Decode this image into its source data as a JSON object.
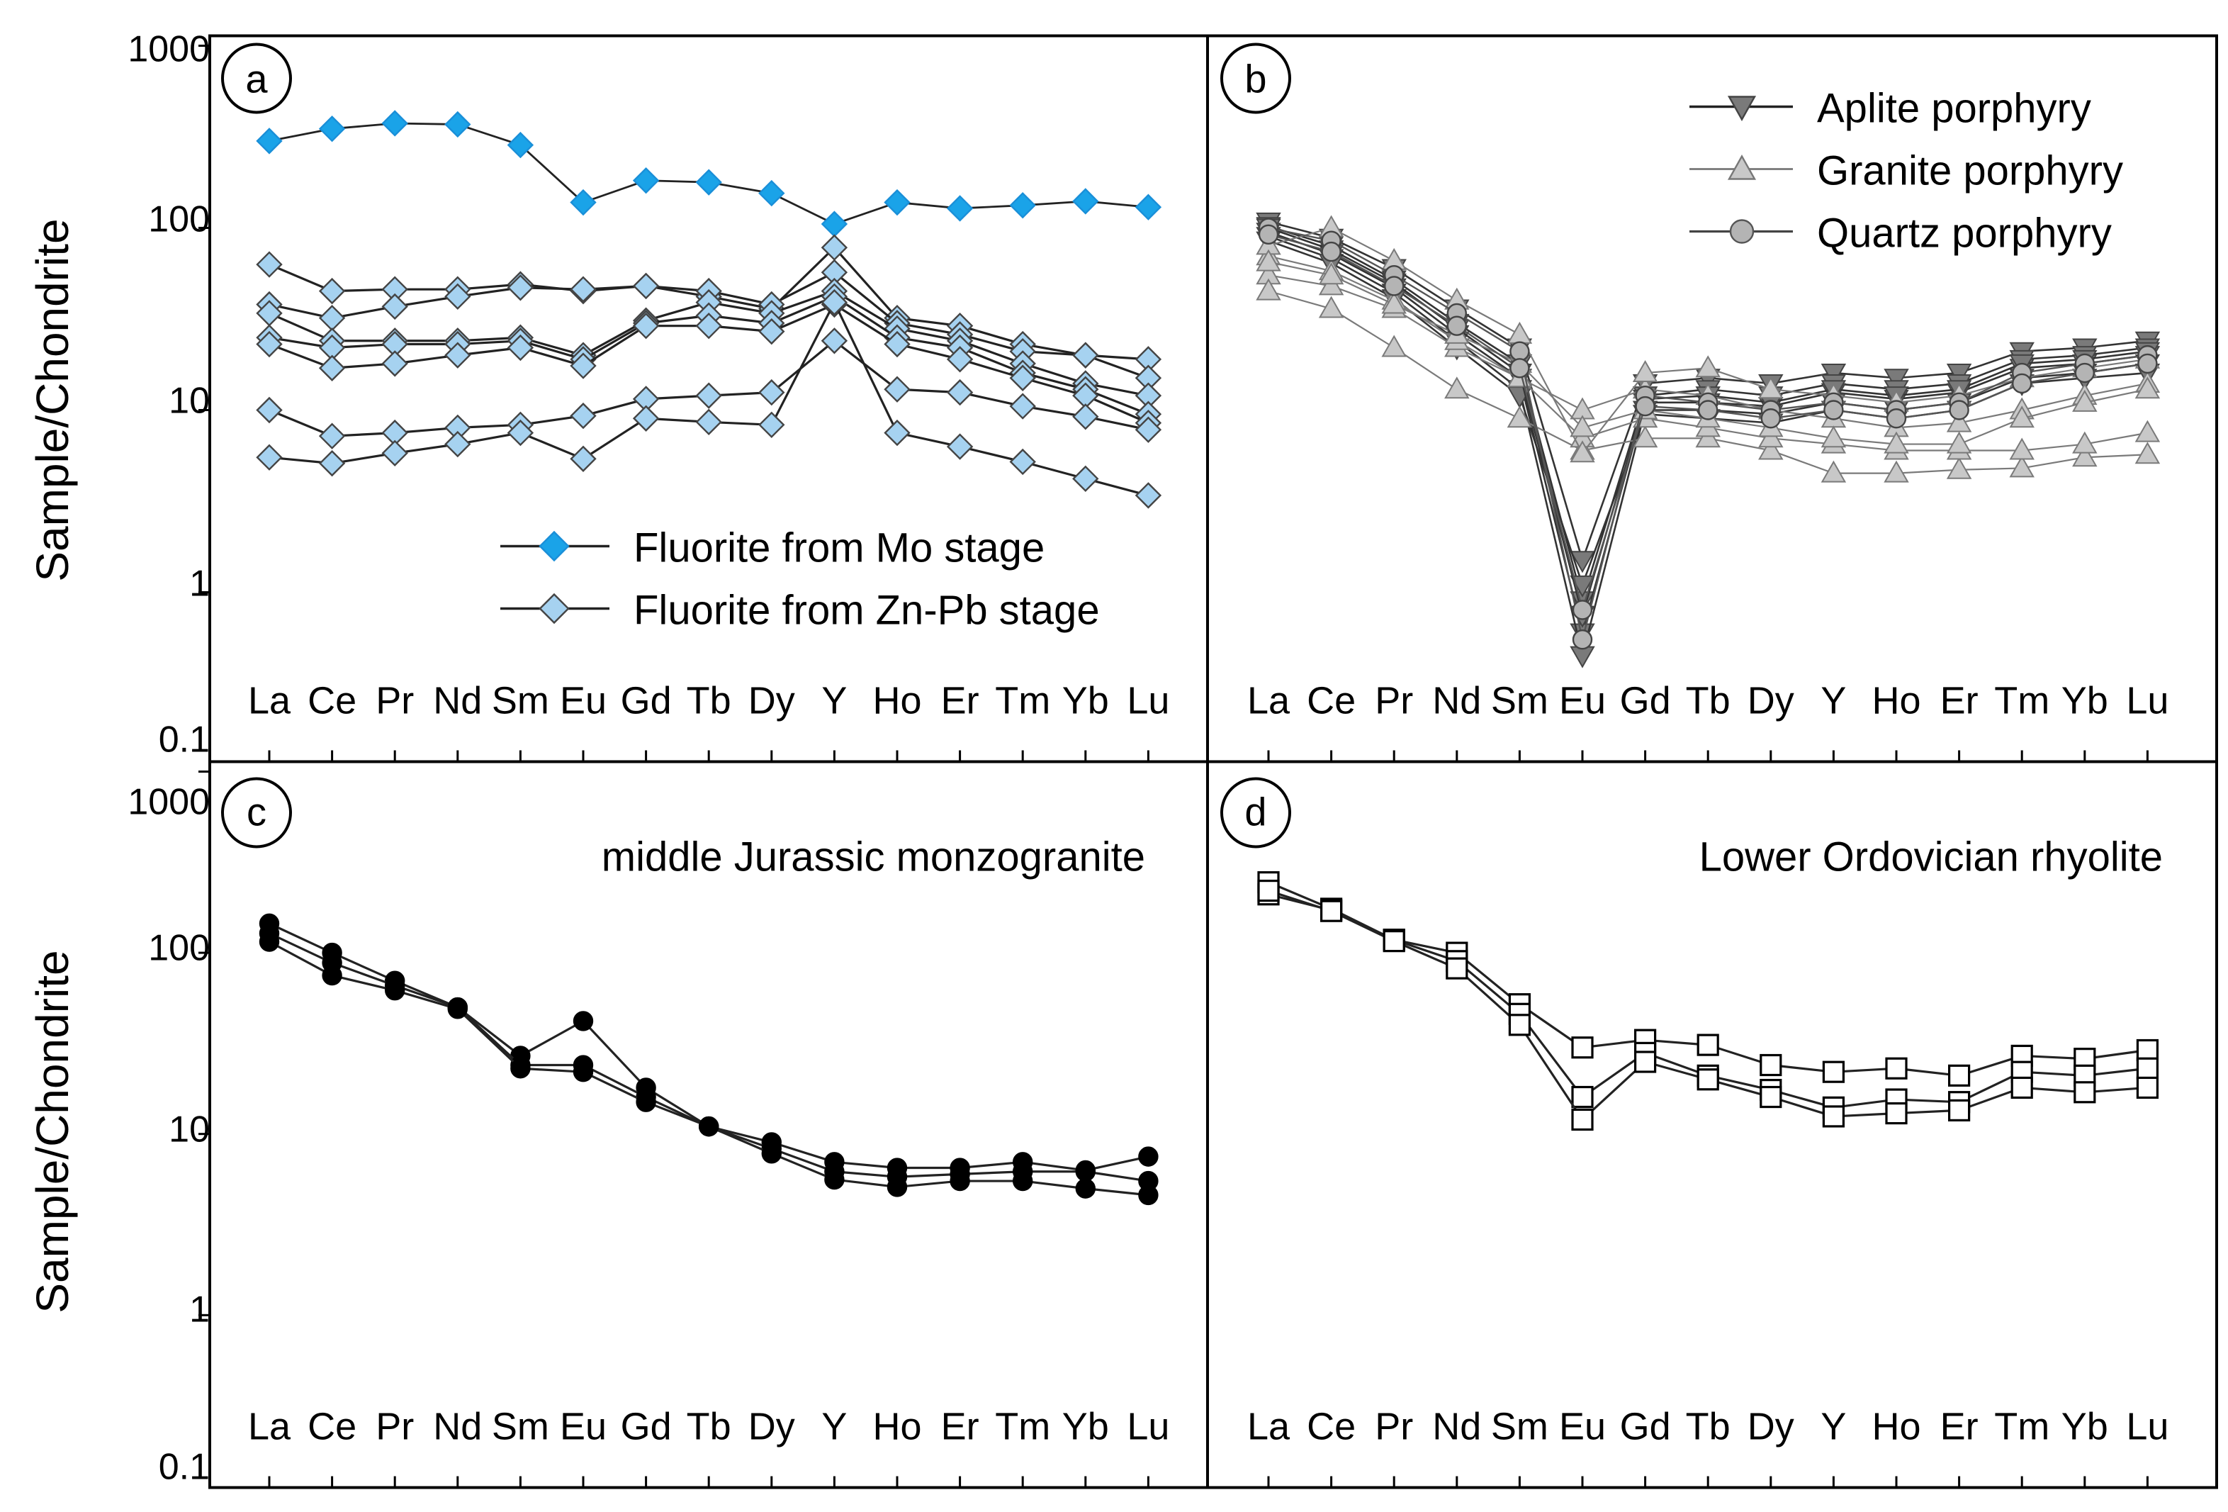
{
  "figure": {
    "y_axis_label": "Sample/Chondrite",
    "y_tick_labels": [
      "1000",
      "100",
      "10",
      "1",
      "0.1"
    ],
    "x_tick_labels": [
      "La",
      "Ce",
      "Pr",
      "Nd",
      "Sm",
      "Eu",
      "Gd",
      "Tb",
      "Dy",
      "Y",
      "Ho",
      "Er",
      "Tm",
      "Yb",
      "Lu"
    ]
  },
  "chart_data": [
    {
      "id": "a",
      "type": "line",
      "panel_label": "a",
      "title": "",
      "xlabel": "",
      "ylabel": "Sample/Chondrite",
      "yscale": "log",
      "ylim": [
        0.1,
        1000
      ],
      "categories": [
        "La",
        "Ce",
        "Pr",
        "Nd",
        "Sm",
        "Eu",
        "Gd",
        "Tb",
        "Dy",
        "Y",
        "Ho",
        "Er",
        "Tm",
        "Yb",
        "Lu"
      ],
      "legend": [
        "Fluorite from Mo stage",
        "Fluorite from Zn-Pb stage"
      ],
      "legend_position": "bottom-right",
      "series": [
        {
          "name": "Fluorite from Mo stage",
          "marker": "diamond",
          "color": "#1aa3e8",
          "stroke": "#1a8fd8",
          "values": [
            300,
            350,
            375,
            370,
            285,
            138,
            182,
            178,
            155,
            105,
            138,
            128,
            133,
            140,
            130
          ]
        },
        {
          "name": "Fluorite from Zn-Pb stage",
          "marker": "diamond",
          "color": "#a6d2f0",
          "stroke": "#444444",
          "values": [
            63,
            45,
            46,
            46,
            49,
            45,
            48,
            42,
            36,
            78,
            32,
            29,
            23,
            20,
            19
          ]
        },
        {
          "name": "Fluorite from Zn-Pb stage",
          "marker": "diamond",
          "color": "#a6d2f0",
          "stroke": "#444444",
          "values": [
            38,
            32,
            37,
            42,
            47,
            46,
            48,
            45,
            38,
            57,
            30,
            26,
            21,
            20,
            15
          ]
        },
        {
          "name": "Fluorite from Zn-Pb stage",
          "marker": "diamond",
          "color": "#a6d2f0",
          "stroke": "#444444",
          "values": [
            34,
            24,
            24,
            24,
            25,
            20,
            31,
            39,
            34,
            45,
            28,
            24,
            18,
            14,
            12
          ]
        },
        {
          "name": "Fluorite from Zn-Pb stage",
          "marker": "diamond",
          "color": "#a6d2f0",
          "stroke": "#444444",
          "values": [
            25,
            22,
            23,
            23,
            24,
            19,
            30,
            33,
            30,
            42,
            25,
            22,
            16,
            13,
            9.5
          ]
        },
        {
          "name": "Fluorite from Zn-Pb stage",
          "marker": "diamond",
          "color": "#a6d2f0",
          "stroke": "#444444",
          "values": [
            23,
            17,
            18,
            20,
            22,
            17.5,
            29,
            29,
            27,
            38,
            23,
            19,
            15,
            12,
            8.5
          ]
        },
        {
          "name": "Fluorite from Zn-Pb stage",
          "marker": "diamond",
          "color": "#a6d2f0",
          "stroke": "#444444",
          "values": [
            10,
            7.2,
            7.5,
            8,
            8.3,
            9.3,
            11.5,
            12,
            12.5,
            24,
            13,
            12.5,
            10.5,
            9.2,
            7.8
          ]
        },
        {
          "name": "Fluorite from Zn-Pb stage",
          "marker": "diamond",
          "color": "#a6d2f0",
          "stroke": "#444444",
          "values": [
            5.5,
            5.1,
            5.8,
            6.5,
            7.5,
            5.4,
            9,
            8.6,
            8.3,
            39,
            7.5,
            6.3,
            5.2,
            4.2,
            3.4
          ]
        }
      ]
    },
    {
      "id": "b",
      "type": "line",
      "panel_label": "b",
      "title": "",
      "xlabel": "",
      "ylabel": "",
      "yscale": "log",
      "ylim": [
        0.1,
        1000
      ],
      "categories": [
        "La",
        "Ce",
        "Pr",
        "Nd",
        "Sm",
        "Eu",
        "Gd",
        "Tb",
        "Dy",
        "Y",
        "Ho",
        "Er",
        "Tm",
        "Yb",
        "Lu"
      ],
      "legend": [
        "Aplite porphyry",
        "Granite porphyry",
        "Quartz porphyry"
      ],
      "legend_position": "top-right",
      "series": [
        {
          "name": "Aplite porphyry",
          "marker": "triangle-down",
          "color": "#7a7a7a",
          "values": [
            108,
            88,
            60,
            36,
            22,
            1.5,
            14,
            15,
            14,
            16,
            15,
            16,
            21,
            22,
            24
          ]
        },
        {
          "name": "Aplite porphyry",
          "marker": "triangle-down",
          "color": "#7a7a7a",
          "values": [
            102,
            80,
            52,
            30,
            18,
            0.9,
            12,
            13,
            12,
            14,
            13,
            14,
            19,
            20,
            22
          ]
        },
        {
          "name": "Aplite porphyry",
          "marker": "triangle-down",
          "color": "#7a7a7a",
          "values": [
            95,
            72,
            47,
            26,
            15,
            0.6,
            11,
            11,
            10.5,
            12.5,
            11.5,
            12.5,
            17,
            18,
            20
          ]
        },
        {
          "name": "Aplite porphyry",
          "marker": "triangle-down",
          "color": "#7a7a7a",
          "values": [
            90,
            68,
            44,
            24,
            13,
            0.45,
            10,
            10,
            9.5,
            11,
            10,
            11,
            15,
            16,
            18
          ]
        },
        {
          "name": "Aplite porphyry",
          "marker": "triangle-down",
          "color": "#7a7a7a",
          "values": [
            85,
            64,
            41,
            22,
            12,
            1.1,
            9.5,
            9,
            8.5,
            10,
            9,
            10,
            14,
            15,
            16
          ]
        },
        {
          "name": "Aplite porphyry",
          "marker": "triangle-down",
          "color": "#7a7a7a",
          "values": [
            100,
            76,
            50,
            28,
            16,
            0.75,
            11.5,
            12,
            11,
            13,
            12,
            13,
            18,
            19,
            21
          ]
        },
        {
          "name": "Granite porphyry",
          "marker": "triangle-up",
          "color": "#c8c8c8",
          "values": [
            55,
            48,
            36,
            22,
            15,
            10,
            13,
            12,
            10,
            9,
            8,
            8.5,
            10,
            12,
            14
          ]
        },
        {
          "name": "Granite porphyry",
          "marker": "triangle-up",
          "color": "#c8c8c8",
          "values": [
            45,
            36,
            22,
            13,
            9,
            6,
            7,
            7,
            6,
            4.5,
            4.5,
            4.7,
            4.8,
            5.5,
            5.7
          ]
        },
        {
          "name": "Granite porphyry",
          "marker": "triangle-up",
          "color": "#c8c8c8",
          "values": [
            70,
            58,
            40,
            24,
            15,
            7,
            9,
            8,
            7,
            6.5,
            6,
            6,
            6,
            6.5,
            7.5
          ]
        },
        {
          "name": "Granite porphyry",
          "marker": "triangle-up",
          "color": "#c8c8c8",
          "values": [
            80,
            100,
            66,
            40,
            26,
            5.8,
            16,
            17,
            13,
            12,
            11,
            12,
            15,
            17,
            19
          ]
        },
        {
          "name": "Granite porphyry",
          "marker": "triangle-up",
          "color": "#c8c8c8",
          "values": [
            65,
            55,
            38,
            26,
            18,
            8,
            10,
            9,
            8,
            7,
            6.5,
            6.5,
            9,
            11,
            13
          ]
        },
        {
          "name": "Quartz porphyry",
          "marker": "circle",
          "color": "#b4b4b4",
          "values": [
            100,
            85,
            55,
            34,
            21,
            0.55,
            12,
            11,
            10,
            11,
            10,
            11,
            16,
            18,
            20
          ]
        },
        {
          "name": "Quartz porphyry",
          "marker": "circle",
          "color": "#b4b4b4",
          "values": [
            92,
            74,
            48,
            29,
            17,
            0.8,
            10.5,
            10,
            9,
            10,
            9,
            10,
            14,
            16,
            18
          ]
        }
      ]
    },
    {
      "id": "c",
      "type": "line",
      "panel_label": "c",
      "title": "middle Jurassic monzogranite",
      "xlabel": "",
      "ylabel": "Sample/Chondrite",
      "yscale": "log",
      "ylim": [
        0.1,
        1000
      ],
      "categories": [
        "La",
        "Ce",
        "Pr",
        "Nd",
        "Sm",
        "Eu",
        "Gd",
        "Tb",
        "Dy",
        "Y",
        "Ho",
        "Er",
        "Tm",
        "Yb",
        "Lu"
      ],
      "series": [
        {
          "name": "",
          "marker": "circle",
          "color": "#000000",
          "values": [
            145,
            100,
            70,
            50,
            27,
            42,
            18,
            11,
            9,
            7,
            6.5,
            6.5,
            7,
            6.3,
            7.5
          ]
        },
        {
          "name": "",
          "marker": "circle",
          "color": "#000000",
          "values": [
            128,
            88,
            66,
            50,
            24,
            24,
            16,
            11,
            8.3,
            6.2,
            5.8,
            6,
            6.2,
            6.2,
            5.5
          ]
        },
        {
          "name": "",
          "marker": "circle",
          "color": "#000000",
          "values": [
            115,
            75,
            62,
            49,
            23,
            22,
            15,
            11,
            7.8,
            5.6,
            5.1,
            5.5,
            5.5,
            5,
            4.6
          ]
        }
      ]
    },
    {
      "id": "d",
      "type": "line",
      "panel_label": "d",
      "title": "Lower Ordovician rhyolite",
      "xlabel": "",
      "ylabel": "",
      "yscale": "log",
      "ylim": [
        0.1,
        1000
      ],
      "categories": [
        "La",
        "Ce",
        "Pr",
        "Nd",
        "Sm",
        "Eu",
        "Gd",
        "Tb",
        "Dy",
        "Y",
        "Ho",
        "Er",
        "Tm",
        "Yb",
        "Lu"
      ],
      "series": [
        {
          "name": "",
          "marker": "square",
          "color": "#ffffff",
          "values": [
            245,
            175,
            118,
            100,
            52,
            30,
            33,
            31,
            24,
            22,
            23,
            21,
            27,
            26,
            29
          ]
        },
        {
          "name": "",
          "marker": "square",
          "color": "#ffffff",
          "values": [
            210,
            172,
            118,
            90,
            46,
            16,
            28,
            21,
            17.5,
            14,
            15.5,
            15,
            22,
            21,
            23
          ]
        },
        {
          "name": "",
          "marker": "square",
          "color": "#ffffff",
          "values": [
            220,
            170,
            116,
            82,
            40,
            12,
            25,
            20,
            16,
            12.5,
            13,
            13.5,
            18,
            17,
            18
          ]
        }
      ]
    }
  ]
}
